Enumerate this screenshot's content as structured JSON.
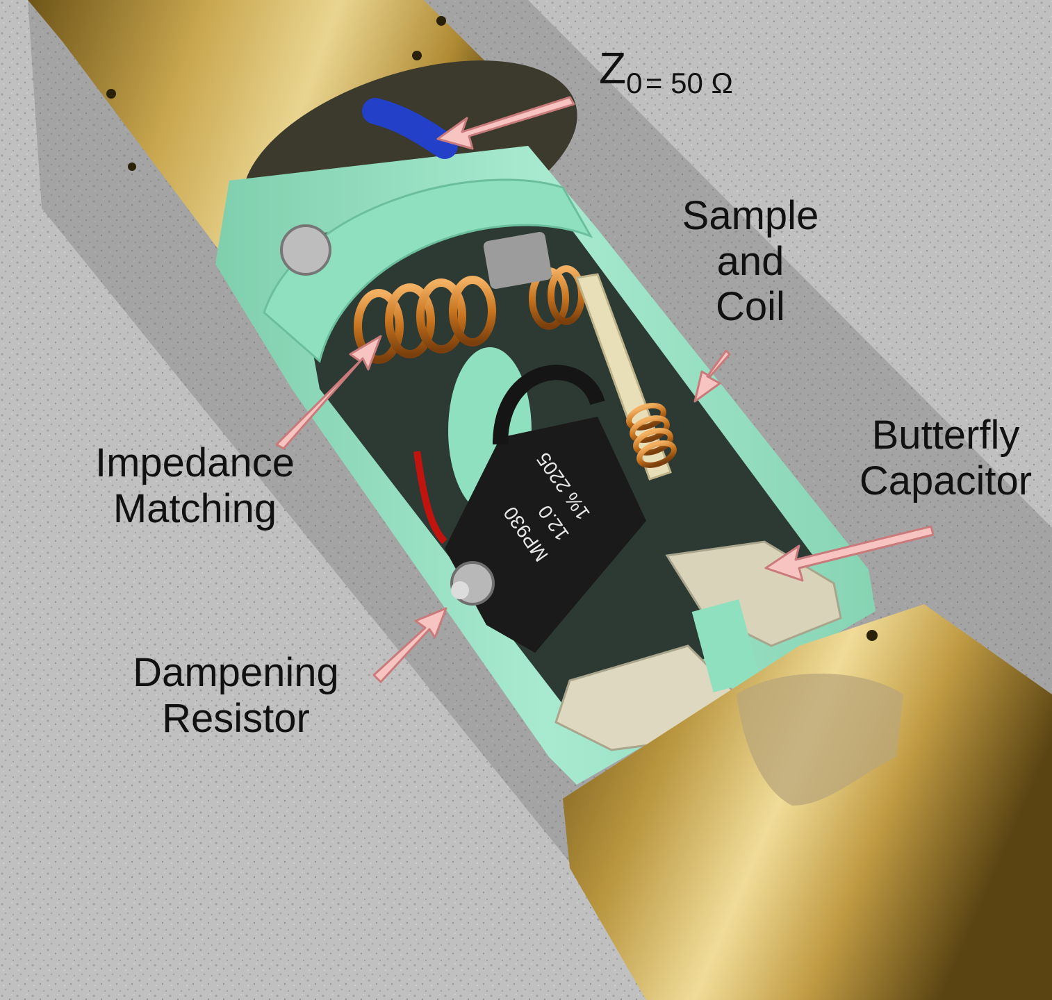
{
  "labels": {
    "z0": {
      "symbol": "Z",
      "subscript": "0",
      "value": "= 50 Ω"
    },
    "sample_coil": [
      "Sample",
      "and",
      "Coil"
    ],
    "butterfly_capacitor": [
      "Butterfly",
      "Capacitor"
    ],
    "impedance_matching": [
      "Impedance",
      "Matching"
    ],
    "dampening_resistor": [
      "Dampening",
      "Resistor"
    ]
  },
  "resistor_marking": [
    "MP930",
    "12.0",
    "1% 2205"
  ],
  "colors": {
    "arrow_fill": "#f7c4c2",
    "arrow_stroke": "#c97b7b",
    "brass": "#c7a552",
    "printed_holder": "#9fe3c5",
    "copper_wire": "#c8741f",
    "resistor_body": "#1a1a1a",
    "background_surface": "#c9c9c9"
  }
}
